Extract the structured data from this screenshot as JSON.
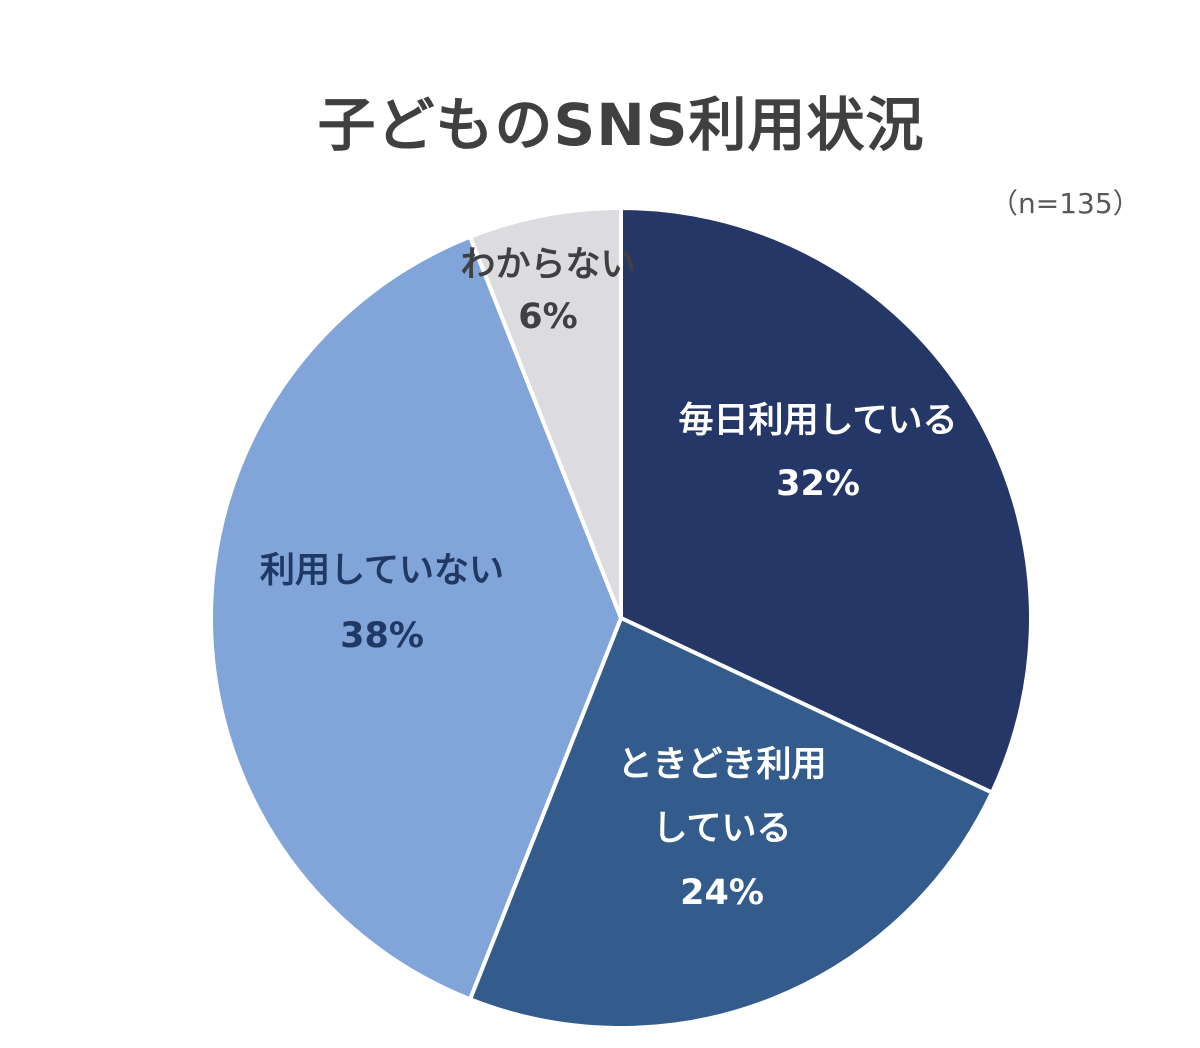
{
  "chart_data": {
    "type": "pie",
    "title": "子どものSNS利用状況",
    "note": "（n=135）",
    "start": "12 o'clock",
    "direction": "clockwise",
    "slices": [
      {
        "label_lines": [
          "毎日利用している"
        ],
        "value_label": "32%",
        "value": 32,
        "color": "#253766",
        "text_color": "#ffffff"
      },
      {
        "label_lines": [
          "ときどき利用",
          "している"
        ],
        "value_label": "24%",
        "value": 24,
        "color": "#335c8c",
        "text_color": "#ffffff"
      },
      {
        "label_lines": [
          "利用していない"
        ],
        "value_label": "38%",
        "value": 38,
        "color": "#82a5d9",
        "text_color": "#1f3864"
      },
      {
        "label_lines": [
          "わからない"
        ],
        "value_label": "6%",
        "value": 6,
        "color": "#dcdbe0",
        "text_color": "#404040"
      }
    ]
  }
}
